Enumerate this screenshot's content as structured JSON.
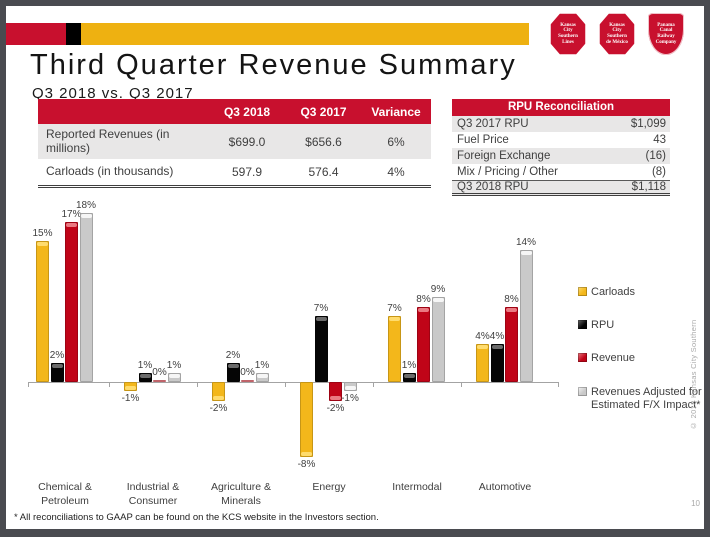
{
  "slide": {
    "title": "Third Quarter Revenue Summary",
    "subtitle": "Q3 2018 vs. Q3 2017",
    "footnote": "* All reconciliations to GAAP can be found on the KCS website in the Investors section.",
    "page_number": "10",
    "copyright": "© 2018 Kansas City Southern"
  },
  "logos": [
    {
      "name": "kansas-city-southern-lines-logo",
      "shape": "octagon",
      "words": [
        "Kansas",
        "City",
        "Southern",
        "Lines"
      ]
    },
    {
      "name": "kansas-city-southern-mexico-logo",
      "shape": "octagon",
      "words": [
        "Kansas",
        "City",
        "Southern",
        "de México"
      ]
    },
    {
      "name": "panama-canal-railway-logo",
      "shape": "shield",
      "words": [
        "Panama",
        "Canal",
        "Railway",
        "Company"
      ]
    }
  ],
  "revenue_table": {
    "column_headers": [
      "Q3 2018",
      "Q3 2017",
      "Variance"
    ],
    "rows": [
      {
        "label": "Reported Revenues (in millions)",
        "values": [
          "$699.0",
          "$656.6",
          "6%"
        ]
      },
      {
        "label": "Carloads (in thousands)",
        "values": [
          "597.9",
          "576.4",
          "4%"
        ]
      }
    ]
  },
  "rpu_table": {
    "title": "RPU Reconciliation",
    "rows": [
      {
        "label": "Q3 2017 RPU",
        "value": "$1,099"
      },
      {
        "label": "Fuel Price",
        "value": "43"
      },
      {
        "label": "Foreign Exchange",
        "value": "(16)"
      },
      {
        "label": "Mix / Pricing / Other",
        "value": "(8)"
      },
      {
        "label": "Q3 2018 RPU",
        "value": "$1,118"
      }
    ]
  },
  "chart_data": {
    "type": "bar",
    "categories": [
      "Chemical & Petroleum",
      "Industrial & Consumer",
      "Agriculture & Minerals",
      "Energy",
      "Intermodal",
      "Automotive"
    ],
    "series": [
      {
        "name": "Carloads",
        "color": "#F3B71B",
        "highlight": "#FFDC6E",
        "values": [
          15,
          -1,
          -2,
          -8,
          7,
          4
        ]
      },
      {
        "name": "RPU",
        "color": "#050505",
        "highlight": "#6b6b6b",
        "values": [
          2,
          1,
          2,
          7,
          1,
          4
        ]
      },
      {
        "name": "Revenue",
        "color": "#C00418",
        "highlight": "#ea7a82",
        "values": [
          17,
          0,
          0,
          -2,
          8,
          8
        ]
      },
      {
        "name": "Revenues Adjusted for Estimated F/X Impact*",
        "color": "#C9C9C9",
        "highlight": "#F6F6F6",
        "values": [
          18,
          1,
          1,
          -1,
          9,
          14
        ]
      }
    ],
    "value_suffix": "%",
    "value_labels": true,
    "ylim": [
      -10,
      20
    ],
    "grid": false,
    "legend_position": "right"
  },
  "colors": {
    "kcs_red": "#C8102E",
    "gold": "#EEB111",
    "stripe_black": "#000000",
    "table_row_gray": "#E8E7E7",
    "text_dark": "#3F3F3F"
  }
}
